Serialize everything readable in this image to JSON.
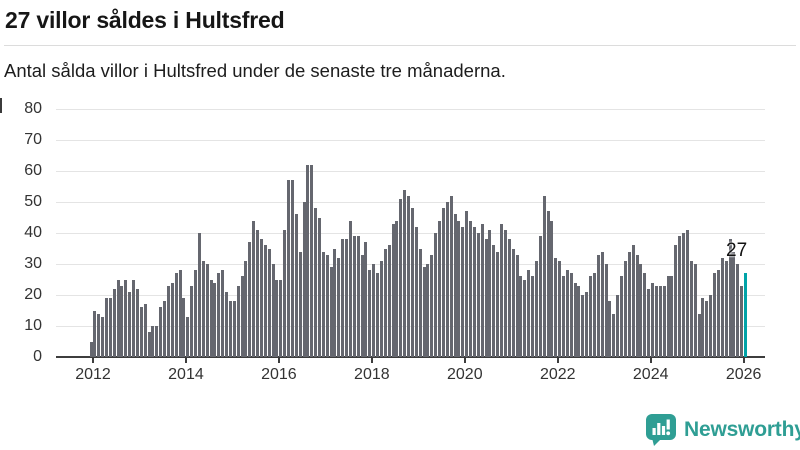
{
  "header": {
    "title": "27 villor såldes i Hultsfred",
    "subtitle": "Antal sålda villor i Hultsfred under de senaste tre månaderna."
  },
  "annotation": {
    "value": "27"
  },
  "branding": {
    "text": "Newsworthy"
  },
  "colors": {
    "bar": "#65676f",
    "highlight": "#00a3a8",
    "grid": "#e4e4e4",
    "axis": "#3d3d3d",
    "axis_text": "#333333",
    "brand": "#2f9e94"
  },
  "chart_data": {
    "type": "bar",
    "title": "27 villor såldes i Hultsfred",
    "subtitle": "Antal sålda villor i Hultsfred under de senaste tre månaderna.",
    "ylim": [
      0,
      80
    ],
    "y_ticks": [
      0,
      10,
      20,
      30,
      40,
      50,
      60,
      70,
      80
    ],
    "x_tick_labels": [
      "2012",
      "2014",
      "2016",
      "2018",
      "2020",
      "2022",
      "2024",
      "2026"
    ],
    "grid": true,
    "legend": false,
    "highlight_last": true,
    "highlight_value": 27,
    "values": [
      5,
      15,
      14,
      13,
      19,
      19,
      22,
      25,
      23,
      25,
      21,
      25,
      22,
      16,
      17,
      8,
      10,
      10,
      16,
      18,
      23,
      24,
      27,
      28,
      19,
      13,
      23,
      28,
      40,
      31,
      30,
      25,
      24,
      27,
      28,
      21,
      18,
      18,
      23,
      26,
      31,
      37,
      44,
      41,
      38,
      36,
      35,
      30,
      25,
      25,
      41,
      57,
      57,
      46,
      34,
      50,
      62,
      62,
      48,
      45,
      34,
      33,
      29,
      35,
      32,
      38,
      38,
      44,
      39,
      39,
      33,
      37,
      28,
      30,
      27,
      31,
      35,
      36,
      43,
      44,
      51,
      54,
      52,
      48,
      42,
      35,
      29,
      30,
      33,
      40,
      44,
      48,
      50,
      52,
      46,
      44,
      42,
      47,
      44,
      42,
      40,
      43,
      38,
      41,
      36,
      34,
      43,
      41,
      38,
      35,
      33,
      26,
      25,
      28,
      26,
      31,
      39,
      52,
      47,
      44,
      32,
      31,
      26,
      28,
      27,
      24,
      23,
      20,
      21,
      26,
      27,
      33,
      34,
      30,
      18,
      14,
      20,
      26,
      31,
      34,
      36,
      33,
      30,
      27,
      22,
      24,
      23,
      23,
      23,
      26,
      26,
      36,
      39,
      40,
      41,
      31,
      30,
      14,
      19,
      18,
      20,
      27,
      28,
      32,
      31,
      38,
      34,
      30,
      23,
      27
    ]
  }
}
